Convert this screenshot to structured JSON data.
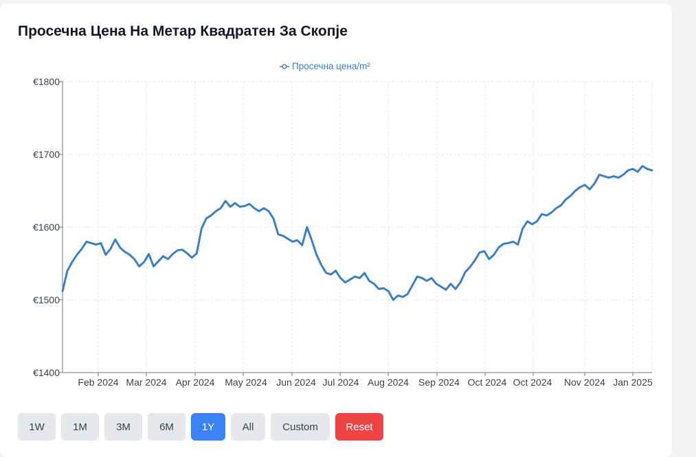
{
  "title": "Просечна Цена На Метар Квадратен За Скопје",
  "chart_data": {
    "type": "line",
    "legend": "Просечна цена/m²",
    "color": "#3b7fc4",
    "grid": true,
    "legend_position": "top-center",
    "ylim": [
      1400,
      1800
    ],
    "yticks": [
      "€1800",
      "€1700",
      "€1600",
      "€1500",
      "€1400"
    ],
    "ytick_values": [
      1800,
      1700,
      1600,
      1500,
      1400
    ],
    "xticks": [
      "Feb 2024",
      "Mar 2024",
      "Apr 2024",
      "May 2024",
      "Jun 2024",
      "Jul 2024",
      "Aug 2024",
      "Sep 2024",
      "Oct 2024",
      "Oct 2024",
      "Nov 2024",
      "Jan 2025"
    ],
    "series": [
      {
        "name": "Просечна цена/m²",
        "x": [
          "2024-01-08",
          "2024-01-11",
          "2024-01-14",
          "2024-01-17",
          "2024-01-20",
          "2024-01-23",
          "2024-01-26",
          "2024-01-29",
          "2024-02-01",
          "2024-02-04",
          "2024-02-07",
          "2024-02-10",
          "2024-02-13",
          "2024-02-16",
          "2024-02-19",
          "2024-02-22",
          "2024-02-25",
          "2024-02-28",
          "2024-03-02",
          "2024-03-05",
          "2024-03-08",
          "2024-03-11",
          "2024-03-14",
          "2024-03-17",
          "2024-03-20",
          "2024-03-23",
          "2024-03-26",
          "2024-03-29",
          "2024-04-01",
          "2024-04-04",
          "2024-04-07",
          "2024-04-10",
          "2024-04-13",
          "2024-04-16",
          "2024-04-19",
          "2024-04-22",
          "2024-04-25",
          "2024-04-28",
          "2024-05-01",
          "2024-05-04",
          "2024-05-07",
          "2024-05-10",
          "2024-05-13",
          "2024-05-16",
          "2024-05-19",
          "2024-05-22",
          "2024-05-25",
          "2024-05-28",
          "2024-05-31",
          "2024-06-03",
          "2024-06-06",
          "2024-06-09",
          "2024-06-12",
          "2024-06-15",
          "2024-06-18",
          "2024-06-21",
          "2024-06-24",
          "2024-06-27",
          "2024-06-30",
          "2024-07-03",
          "2024-07-06",
          "2024-07-09",
          "2024-07-12",
          "2024-07-15",
          "2024-07-18",
          "2024-07-21",
          "2024-07-24",
          "2024-07-27",
          "2024-07-30",
          "2024-08-02",
          "2024-08-05",
          "2024-08-08",
          "2024-08-11",
          "2024-08-14",
          "2024-08-17",
          "2024-08-20",
          "2024-08-23",
          "2024-08-26",
          "2024-08-29",
          "2024-09-01",
          "2024-09-04",
          "2024-09-07",
          "2024-09-10",
          "2024-09-13",
          "2024-09-16",
          "2024-09-19",
          "2024-09-22",
          "2024-09-25",
          "2024-09-28",
          "2024-10-01",
          "2024-10-04",
          "2024-10-07",
          "2024-10-10",
          "2024-10-13",
          "2024-10-16",
          "2024-10-19",
          "2024-10-22",
          "2024-10-25",
          "2024-10-28",
          "2024-10-31",
          "2024-11-03",
          "2024-11-06",
          "2024-11-09",
          "2024-11-12",
          "2024-11-15",
          "2024-11-18",
          "2024-11-21",
          "2024-11-24",
          "2024-11-27",
          "2024-11-30",
          "2024-12-03",
          "2024-12-06",
          "2024-12-09",
          "2024-12-12",
          "2024-12-15",
          "2024-12-18",
          "2024-12-21",
          "2024-12-24",
          "2024-12-27",
          "2024-12-30",
          "2025-01-02",
          "2025-01-05",
          "2025-01-08",
          "2025-01-11"
        ],
        "y": [
          1512,
          1540,
          1552,
          1562,
          1570,
          1580,
          1578,
          1576,
          1578,
          1562,
          1570,
          1583,
          1572,
          1566,
          1562,
          1556,
          1546,
          1552,
          1563,
          1546,
          1553,
          1560,
          1556,
          1563,
          1568,
          1569,
          1564,
          1558,
          1564,
          1598,
          1612,
          1616,
          1622,
          1626,
          1636,
          1628,
          1633,
          1628,
          1629,
          1632,
          1626,
          1622,
          1626,
          1622,
          1612,
          1590,
          1588,
          1584,
          1580,
          1582,
          1575,
          1600,
          1582,
          1562,
          1548,
          1537,
          1535,
          1540,
          1530,
          1524,
          1528,
          1532,
          1530,
          1537,
          1526,
          1522,
          1515,
          1516,
          1512,
          1500,
          1506,
          1504,
          1508,
          1520,
          1532,
          1530,
          1526,
          1530,
          1522,
          1518,
          1514,
          1522,
          1515,
          1524,
          1538,
          1545,
          1554,
          1565,
          1567,
          1556,
          1562,
          1572,
          1577,
          1578,
          1580,
          1576,
          1598,
          1608,
          1604,
          1608,
          1618,
          1616,
          1620,
          1626,
          1630,
          1638,
          1643,
          1650,
          1655,
          1658,
          1652,
          1660,
          1672,
          1670,
          1668,
          1670,
          1668,
          1672,
          1678,
          1680,
          1676,
          1684,
          1680,
          1678
        ]
      }
    ]
  },
  "controls": {
    "buttons": [
      {
        "label": "1W",
        "state": "default"
      },
      {
        "label": "1M",
        "state": "default"
      },
      {
        "label": "3M",
        "state": "default"
      },
      {
        "label": "6M",
        "state": "default"
      },
      {
        "label": "1Y",
        "state": "active"
      },
      {
        "label": "All",
        "state": "default"
      },
      {
        "label": "Custom",
        "state": "default"
      },
      {
        "label": "Reset",
        "state": "danger"
      }
    ]
  }
}
